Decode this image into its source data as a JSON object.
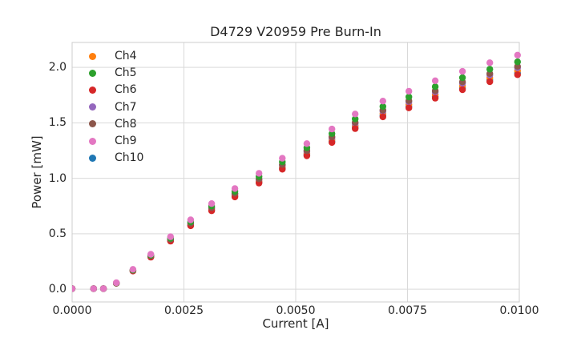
{
  "chart_data": {
    "type": "scatter",
    "title": "D4729 V20959 Pre Burn-In",
    "xlabel": "Current [A]",
    "ylabel": "Power [mW]",
    "xlim": [
      0.0,
      0.01
    ],
    "ylim": [
      -0.115,
      2.225
    ],
    "grid": true,
    "legend_position": "upper left",
    "colors": {
      "background": "#ffffff",
      "grid": "#d9d9d9",
      "spine": "#cccccc",
      "text": "#262626"
    },
    "xticks": {
      "values": [
        0.0,
        0.0025,
        0.005,
        0.0075,
        0.01
      ],
      "labels": [
        "0.0000",
        "0.0025",
        "0.0050",
        "0.0075",
        "0.0100"
      ]
    },
    "yticks": {
      "values": [
        0.0,
        0.5,
        1.0,
        1.5,
        2.0
      ],
      "labels": [
        "0.0",
        "0.5",
        "1.0",
        "1.5",
        "2.0"
      ]
    },
    "x": [
      0.0,
      0.00048,
      0.0007,
      0.00099,
      0.00136,
      0.00176,
      0.0022,
      0.00265,
      0.00312,
      0.00364,
      0.00418,
      0.0047,
      0.00525,
      0.00581,
      0.00633,
      0.00695,
      0.00753,
      0.00812,
      0.00873,
      0.00934,
      0.00996
    ],
    "series": [
      {
        "name": "Ch4",
        "color": "#ff7f0e",
        "values": [
          0.005,
          0.005,
          0.005,
          0.054,
          0.167,
          0.294,
          0.441,
          0.583,
          0.72,
          0.848,
          0.975,
          1.103,
          1.225,
          1.348,
          1.475,
          1.583,
          1.666,
          1.754,
          1.833,
          1.906,
          1.97
        ]
      },
      {
        "name": "Ch5",
        "color": "#2ca02c",
        "values": [
          0.005,
          0.005,
          0.005,
          0.056,
          0.173,
          0.306,
          0.459,
          0.607,
          0.75,
          0.882,
          1.015,
          1.148,
          1.275,
          1.403,
          1.535,
          1.647,
          1.734,
          1.826,
          1.907,
          1.984,
          2.05
        ]
      },
      {
        "name": "Ch6",
        "color": "#d62728",
        "values": [
          0.005,
          0.005,
          0.005,
          0.053,
          0.164,
          0.289,
          0.433,
          0.572,
          0.707,
          0.832,
          0.957,
          1.082,
          1.203,
          1.323,
          1.448,
          1.554,
          1.635,
          1.722,
          1.799,
          1.871,
          1.934
        ]
      },
      {
        "name": "Ch7",
        "color": "#9467bd",
        "values": [
          0.005,
          0.005,
          0.005,
          0.055,
          0.169,
          0.298,
          0.447,
          0.591,
          0.73,
          0.859,
          0.988,
          1.117,
          1.241,
          1.365,
          1.494,
          1.604,
          1.688,
          1.777,
          1.857,
          1.931,
          1.996
        ]
      },
      {
        "name": "Ch8",
        "color": "#8c564b",
        "values": [
          0.005,
          0.005,
          0.005,
          0.055,
          0.17,
          0.3,
          0.45,
          0.595,
          0.735,
          0.865,
          0.995,
          1.125,
          1.25,
          1.375,
          1.505,
          1.615,
          1.7,
          1.79,
          1.87,
          1.945,
          2.01
        ]
      },
      {
        "name": "Ch9",
        "color": "#e377c2",
        "values": [
          0.005,
          0.005,
          0.005,
          0.058,
          0.179,
          0.315,
          0.473,
          0.625,
          0.772,
          0.908,
          1.045,
          1.181,
          1.313,
          1.444,
          1.58,
          1.696,
          1.785,
          1.88,
          1.964,
          2.042,
          2.111
        ]
      },
      {
        "name": "Ch10",
        "color": "#1f77b4",
        "values": [
          0.005,
          0.005,
          0.005,
          0.053,
          0.165,
          0.291,
          0.437,
          0.577,
          0.713,
          0.839,
          0.965,
          1.091,
          1.213,
          1.334,
          1.46,
          1.566,
          1.649,
          1.736,
          1.814,
          1.887,
          1.95
        ]
      }
    ],
    "draw_order": [
      "Ch10",
      "Ch4",
      "Ch7",
      "Ch6",
      "Ch8",
      "Ch5",
      "Ch9"
    ],
    "marker_radius": 4.2
  }
}
